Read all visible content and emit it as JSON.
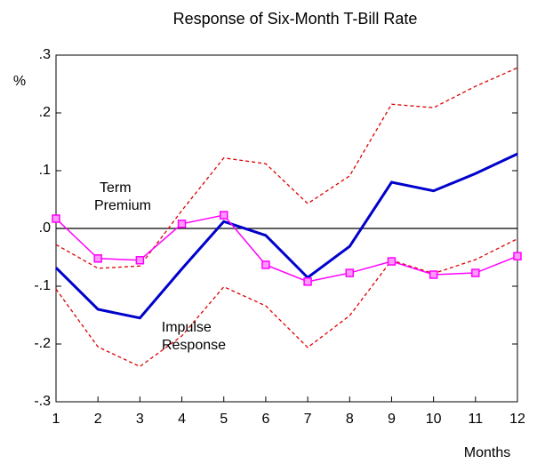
{
  "chart_data": {
    "type": "line",
    "title": "Response of Six-Month T-Bill Rate",
    "y_label": "%",
    "x_label": "Months",
    "x": [
      1,
      2,
      3,
      4,
      5,
      6,
      7,
      8,
      9,
      10,
      11,
      12
    ],
    "xlim": [
      1,
      12
    ],
    "xticks": [
      1,
      2,
      3,
      4,
      5,
      6,
      7,
      8,
      9,
      10,
      11,
      12
    ],
    "ylim": [
      -0.3,
      0.3
    ],
    "yticks": [
      {
        "value": 0.3,
        "label": ".3"
      },
      {
        "value": 0.2,
        "label": ".2"
      },
      {
        "value": 0.1,
        "label": ".1"
      },
      {
        "value": 0,
        "label": ".0"
      },
      {
        "value": -0.1,
        "label": "-.1"
      },
      {
        "value": -0.2,
        "label": "-.2"
      },
      {
        "value": -0.3,
        "label": "-.3"
      }
    ],
    "series": [
      {
        "name": "Impulse Response",
        "color": "#0000cc",
        "style": "solid",
        "values": [
          -0.068,
          -0.14,
          -0.155,
          -0.07,
          0.012,
          -0.012,
          -0.085,
          -0.031,
          0.08,
          0.065,
          0.095,
          0.129
        ]
      },
      {
        "color": "#dd0000",
        "style": "dashed",
        "values": [
          -0.028,
          -0.069,
          -0.065,
          0.031,
          0.122,
          0.112,
          0.043,
          0.091,
          0.215,
          0.209,
          0.246,
          0.278
        ]
      },
      {
        "color": "#dd0000",
        "style": "dashed",
        "values": [
          -0.105,
          -0.205,
          -0.239,
          -0.186,
          -0.101,
          -0.134,
          -0.206,
          -0.151,
          -0.055,
          -0.078,
          -0.054,
          -0.018
        ]
      },
      {
        "name": "Term Premium",
        "color": "#ff00ff",
        "style": "markers",
        "values": [
          0.017,
          -0.052,
          -0.055,
          0.008,
          0.023,
          -0.063,
          -0.092,
          -0.077,
          -0.057,
          -0.08,
          -0.077,
          -0.048
        ]
      }
    ]
  }
}
